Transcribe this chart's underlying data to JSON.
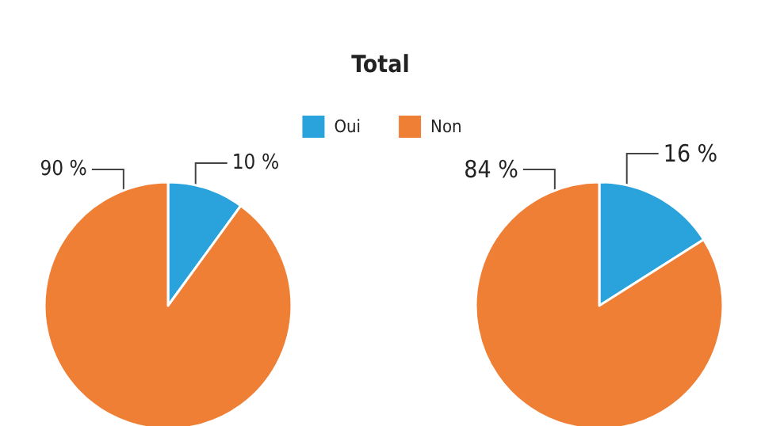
{
  "chart_data": {
    "type": "pie",
    "title": "Total",
    "legend": "top",
    "categories": [
      "Oui",
      "Non"
    ],
    "colors": [
      "#2aa3dc",
      "#f07f36"
    ],
    "series": [
      {
        "values": [
          10,
          90
        ],
        "value_labels": [
          "10 %",
          "90 %"
        ]
      },
      {
        "values": [
          16,
          84
        ],
        "value_labels": [
          "16 %",
          "84 %"
        ]
      }
    ]
  }
}
